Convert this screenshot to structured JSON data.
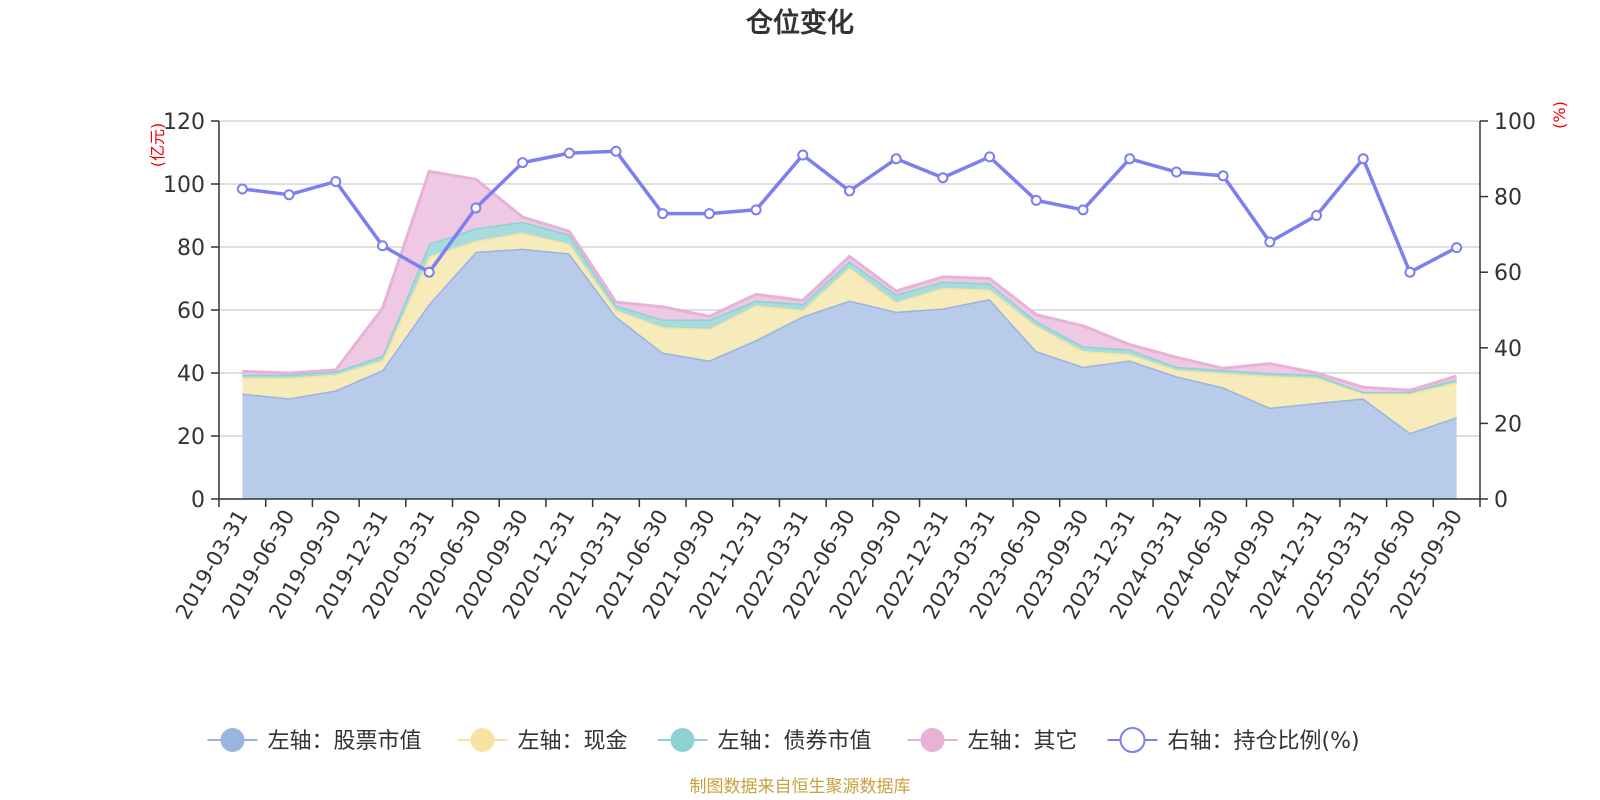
{
  "chart_data": {
    "type": "area",
    "title": "仓位变化",
    "left_axis": {
      "unit": "(亿元)",
      "ylim": [
        0,
        120
      ],
      "ticks": [
        0,
        20,
        40,
        60,
        80,
        100,
        120
      ]
    },
    "right_axis": {
      "unit": "(%)",
      "ylim": [
        0,
        100
      ],
      "ticks": [
        0,
        20,
        40,
        60,
        80,
        100
      ]
    },
    "categories": [
      "2019-03-31",
      "2019-06-30",
      "2019-09-30",
      "2019-12-31",
      "2020-03-31",
      "2020-06-30",
      "2020-09-30",
      "2020-12-31",
      "2021-03-31",
      "2021-06-30",
      "2021-09-30",
      "2021-12-31",
      "2022-03-31",
      "2022-06-30",
      "2022-09-30",
      "2022-12-31",
      "2023-03-31",
      "2023-06-30",
      "2023-09-30",
      "2023-12-31",
      "2024-03-31",
      "2024-06-30",
      "2024-09-30",
      "2024-12-31",
      "2025-03-31",
      "2025-06-30",
      "2025-09-30"
    ],
    "stacked_series": [
      {
        "name": "左轴：股票市值",
        "color": "#9ab4e0",
        "fill": "#b8cbea",
        "values": [
          33.5,
          32,
          34.5,
          41,
          62,
          78.5,
          79.5,
          78,
          58,
          46.5,
          44,
          50.5,
          58,
          63,
          59.5,
          60.5,
          63.5,
          47,
          42,
          44,
          39,
          35.5,
          29,
          30.5,
          32,
          21,
          26
        ]
      },
      {
        "name": "左轴：现金",
        "color": "#f6e3a2",
        "fill": "#f8ebbb",
        "values": [
          5,
          6.5,
          5,
          3,
          15,
          3.5,
          5,
          3,
          2,
          8,
          10,
          11,
          2,
          10.5,
          3,
          6.5,
          3,
          8,
          5,
          2,
          2,
          4.5,
          10,
          8,
          1.5,
          12.5,
          11
        ]
      },
      {
        "name": "左轴：债券市值",
        "color": "#8fd0d2",
        "fill": "#a7dbdc",
        "values": [
          1,
          1,
          1,
          1.5,
          4,
          4,
          3.5,
          3,
          1.5,
          2.5,
          3,
          1.5,
          2,
          2,
          2.5,
          2,
          2,
          1.5,
          1.5,
          1.5,
          1,
          1,
          1,
          1,
          0.5,
          0.5,
          1
        ]
      },
      {
        "name": "左轴：其它",
        "color": "#e8b2d8",
        "fill": "#efc9e3",
        "values": [
          1,
          0.5,
          0.5,
          15,
          23,
          15.5,
          1.5,
          1,
          1,
          4,
          1,
          2,
          1,
          1.5,
          1,
          1.5,
          1.5,
          2,
          6.5,
          1.5,
          3,
          0.5,
          3,
          0.5,
          1.5,
          0.5,
          1
        ]
      }
    ],
    "line_series": {
      "name": "右轴：持仓比例(%)",
      "color": "#7b7ff0",
      "values": [
        82,
        80.5,
        84,
        67,
        60,
        77,
        89,
        91.5,
        92,
        75.5,
        75.5,
        76.5,
        91,
        81.5,
        90,
        85,
        90.5,
        79,
        76.5,
        90,
        86.5,
        85.5,
        68,
        75,
        90,
        60,
        66.5
      ]
    },
    "legend": [
      {
        "label": "左轴：股票市值",
        "marker": "filled-circle",
        "color": "#9ab4e0"
      },
      {
        "label": "左轴：现金",
        "marker": "filled-circle",
        "color": "#f6e3a2"
      },
      {
        "label": "左轴：债券市值",
        "marker": "filled-circle",
        "color": "#8fd0d2"
      },
      {
        "label": "左轴：其它",
        "marker": "filled-circle",
        "color": "#e8b2d8"
      },
      {
        "label": "右轴：持仓比例(%)",
        "marker": "hollow-circle",
        "color": "#7b7ff0"
      }
    ],
    "legend_position": "bottom",
    "grid": true,
    "source": "制图数据来自恒生聚源数据库"
  }
}
